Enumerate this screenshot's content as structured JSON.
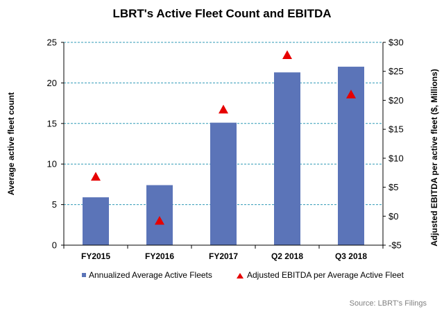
{
  "chart_data": {
    "type": "bar",
    "title": "LBRT's Active Fleet Count and EBITDA",
    "categories": [
      "FY2015",
      "FY2016",
      "FY2017",
      "Q2 2018",
      "Q3 2018"
    ],
    "series": [
      {
        "name": "Annualized Average Active Fleets",
        "type": "bar",
        "axis": "left",
        "color": "#5b74b8",
        "values": [
          5.9,
          7.4,
          15.1,
          21.3,
          22.0
        ]
      },
      {
        "name": "Adjusted EBITDA per Average Active Fleet",
        "type": "scatter",
        "marker": "triangle",
        "axis": "right",
        "color": "#e60000",
        "values": [
          6.8,
          -0.8,
          18.4,
          27.8,
          21.0
        ]
      }
    ],
    "y_left": {
      "label": "Average active fleet count",
      "min": 0,
      "max": 25,
      "ticks": [
        0,
        5,
        10,
        15,
        20,
        25
      ],
      "tick_labels": [
        "0",
        "5",
        "10",
        "15",
        "20",
        "25"
      ]
    },
    "y_right": {
      "label": "Adjusted EBITDA per active fleet ($, Millions)",
      "min": -5,
      "max": 30,
      "ticks": [
        -5,
        0,
        5,
        10,
        15,
        20,
        25,
        30
      ],
      "tick_labels": [
        "-$5",
        "$0",
        "$5",
        "$10",
        "$15",
        "$20",
        "$25",
        "$30"
      ]
    },
    "grid": true,
    "legend_position": "bottom",
    "source": "Source: LBRT's Filings"
  }
}
